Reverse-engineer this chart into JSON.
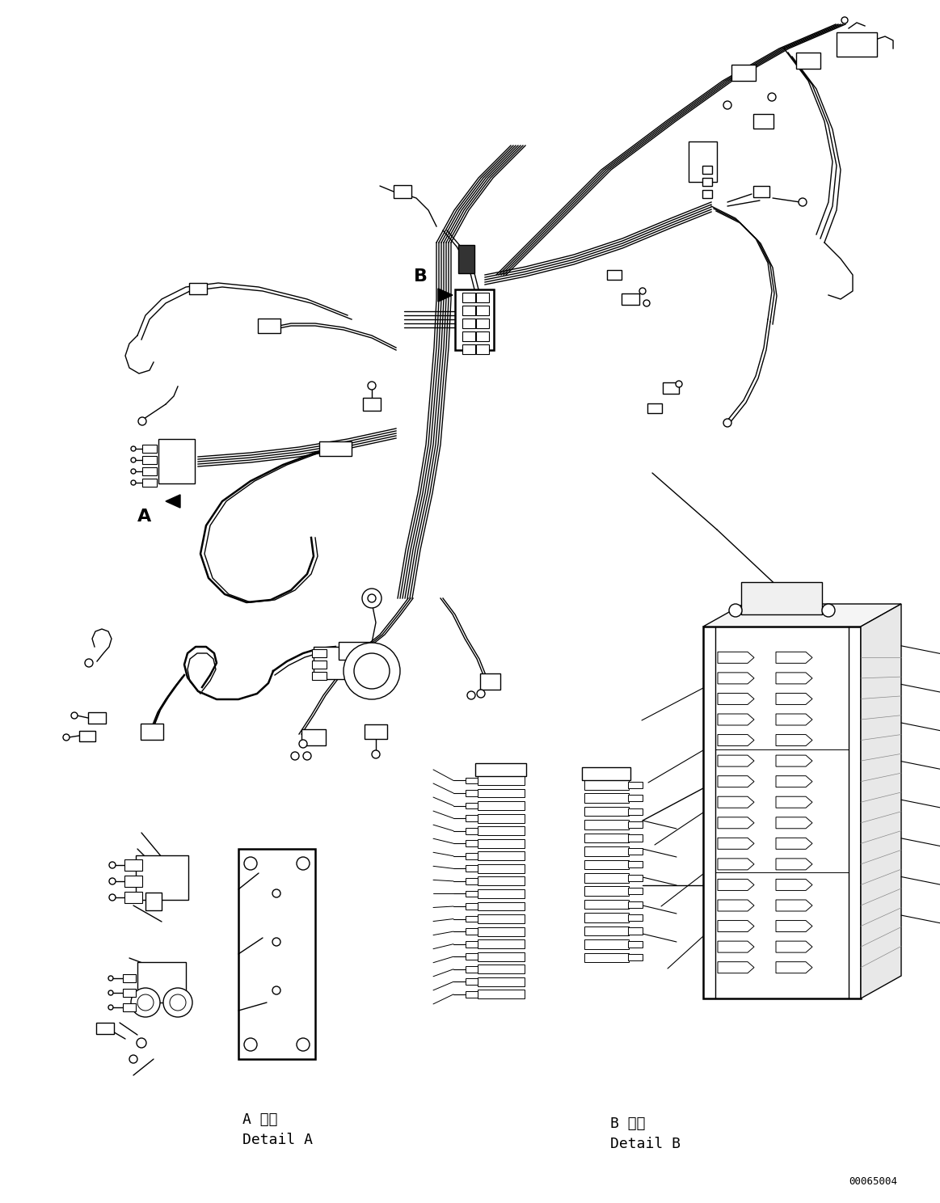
{
  "background_color": "#ffffff",
  "line_color": "#000000",
  "fig_width": 11.63,
  "fig_height": 14.88,
  "dpi": 100,
  "label_A": "A",
  "label_B": "B",
  "detail_A_jp": "A 詳細",
  "detail_A_en": "Detail A",
  "detail_B_jp": "B 詳細",
  "detail_B_en": "Detail B",
  "catalog_number": "00065004",
  "lw": 1.0,
  "lw2": 1.8
}
